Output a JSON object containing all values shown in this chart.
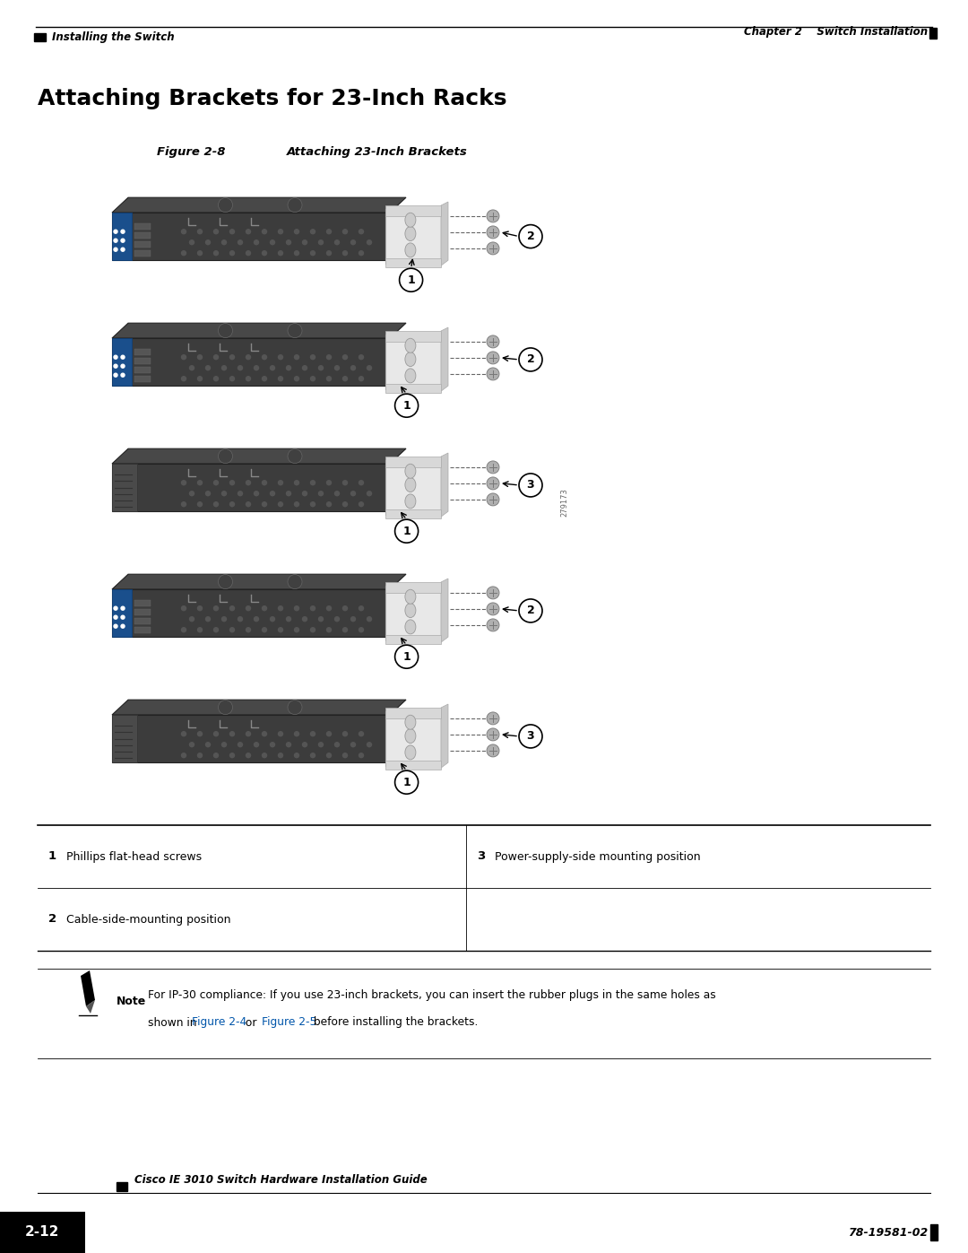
{
  "page_bg": "#ffffff",
  "chapter_text": "Chapter 2    Switch Installation",
  "section_header": "Installing the Switch",
  "main_title": "Attaching Brackets for 23-Inch Racks",
  "figure_label": "Figure 2-8",
  "figure_caption": "Attaching 23-Inch Brackets",
  "watermark_text": "279173",
  "table_rows": [
    {
      "num": "1",
      "label": "Phillips flat-head screws",
      "num2": "3",
      "label2": "Power-supply-side mounting position"
    },
    {
      "num": "2",
      "label": "Cable-side-mounting position",
      "num2": "",
      "label2": ""
    }
  ],
  "note_text_line1": "For IP-30 compliance: If you use 23-inch brackets, you can insert the rubber plugs in the same holes as",
  "note_text_line2_pre": "shown in ",
  "note_text_link1": "Figure 2-4",
  "note_text_mid": " or ",
  "note_text_link2": "Figure 2-5",
  "note_text_line2_post": " before installing the brackets.",
  "footer_guide_text": "Cisco IE 3010 Switch Hardware Installation Guide",
  "footer_page_num": "2-12",
  "footer_ref_text": "78-19581-02",
  "link_color": "#0055AA",
  "configs": [
    {
      "l1_label": "2",
      "l1_pos": "below_bracket",
      "l2_label": "1",
      "l2_pos": "right_upper",
      "has_blue_left": true,
      "variant": "A"
    },
    {
      "l1_label": "1",
      "l1_pos": "lower_mid",
      "l2_label": "2",
      "l2_pos": "right_upper",
      "has_blue_left": true,
      "variant": "B"
    },
    {
      "l1_label": "1",
      "l1_pos": "lower_mid",
      "l2_label": "3",
      "l2_pos": "right_upper",
      "has_blue_left": false,
      "variant": "C"
    },
    {
      "l1_label": "1",
      "l1_pos": "lower_mid",
      "l2_label": "2",
      "l2_pos": "right_upper",
      "has_blue_left": true,
      "variant": "D"
    },
    {
      "l1_label": "1",
      "l1_pos": "lower_mid",
      "l2_label": "3",
      "l2_pos": "right_upper",
      "has_blue_left": false,
      "variant": "E"
    }
  ]
}
